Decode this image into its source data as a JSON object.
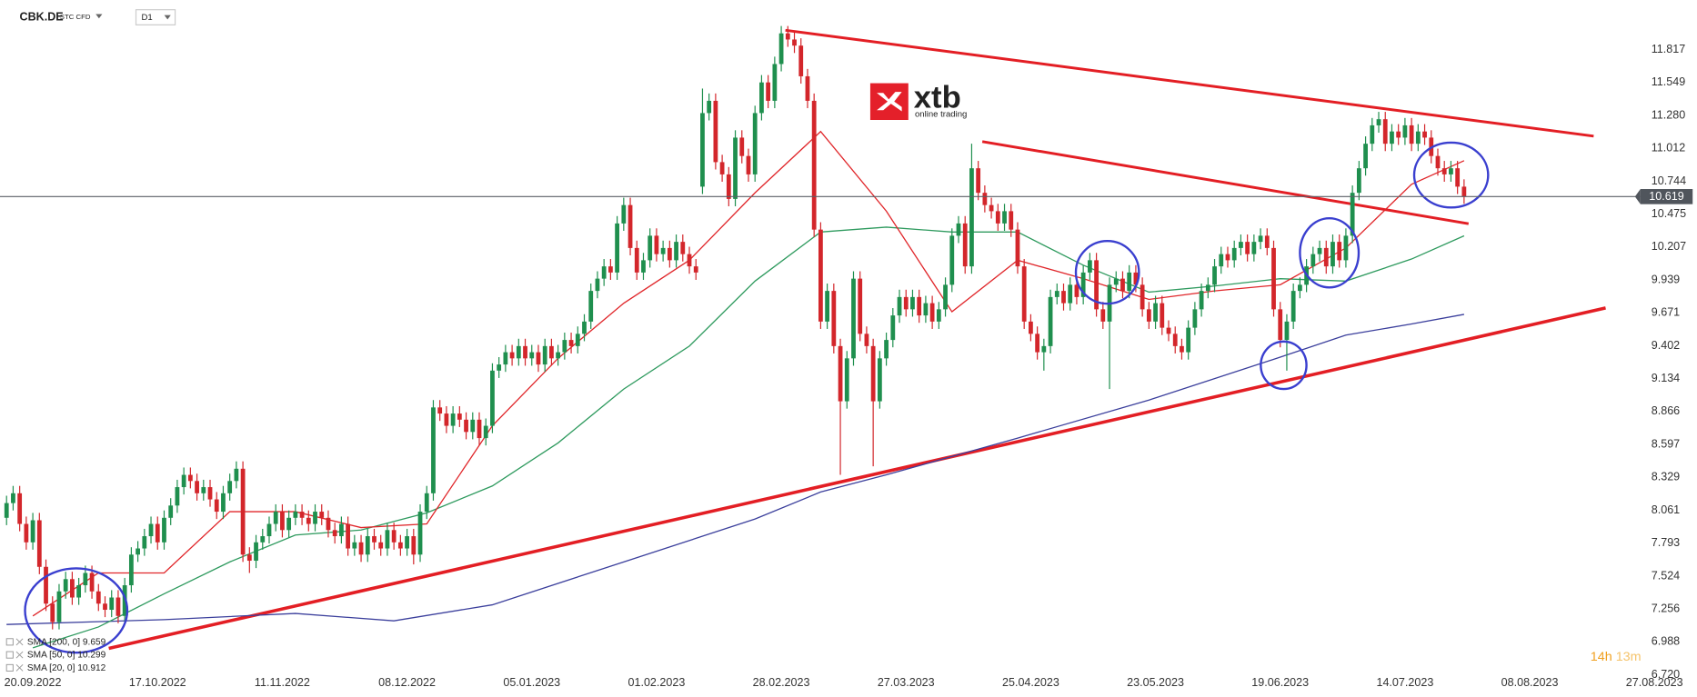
{
  "chart_data": {
    "type": "candlestick",
    "symbol": "CBK.DE",
    "instrument_type": "STC CFD",
    "timeframe": "D1",
    "xlim": [
      -5,
      250
    ],
    "xticks": [
      {
        "value": 0,
        "label": "20.09.2022"
      },
      {
        "value": 19,
        "label": "17.10.2022"
      },
      {
        "value": 38,
        "label": "11.11.2022"
      },
      {
        "value": 57,
        "label": "08.12.2022"
      },
      {
        "value": 76,
        "label": "05.01.2023"
      },
      {
        "value": 95,
        "label": "01.02.2023"
      },
      {
        "value": 114,
        "label": "28.02.2023"
      },
      {
        "value": 133,
        "label": "27.03.2023"
      },
      {
        "value": 152,
        "label": "25.04.2023"
      },
      {
        "value": 171,
        "label": "23.05.2023"
      },
      {
        "value": 190,
        "label": "19.06.2023"
      },
      {
        "value": 209,
        "label": "14.07.2023"
      },
      {
        "value": 228,
        "label": "08.08.2023"
      },
      {
        "value": 247,
        "label": "27.08.2023"
      }
    ],
    "ylim": [
      6.715,
      12.222
    ],
    "yticks": [
      11.817,
      11.549,
      {
        "value": 11.28,
        "label": "11.280"
      },
      11.012,
      10.744,
      10.475,
      10.207,
      9.939,
      9.671,
      9.402,
      9.134,
      8.866,
      8.597,
      8.329,
      8.061,
      7.793,
      7.524,
      7.256,
      6.988,
      {
        "value": 6.72,
        "label": "6.720"
      }
    ],
    "grid": false,
    "up_color": "#1f8f4e",
    "down_color": "#d3262b",
    "last_price": 10.619,
    "candles": {
      "x": [
        -4,
        -3,
        -2,
        -1,
        0,
        1,
        2,
        3,
        4,
        5,
        6,
        7,
        8,
        9,
        10,
        11,
        12,
        13,
        14,
        15,
        16,
        17,
        18,
        19,
        20,
        21,
        22,
        23,
        24,
        25,
        26,
        27,
        28,
        29,
        30,
        31,
        32,
        33,
        34,
        35,
        36,
        37,
        38,
        39,
        40,
        41,
        42,
        43,
        44,
        45,
        46,
        47,
        48,
        49,
        50,
        51,
        52,
        53,
        54,
        55,
        56,
        57,
        58,
        59,
        60,
        61,
        62,
        63,
        64,
        65,
        66,
        67,
        68,
        69,
        70,
        71,
        72,
        73,
        74,
        75,
        76,
        77,
        78,
        79,
        80,
        81,
        82,
        83,
        84,
        85,
        86,
        87,
        88,
        89,
        90,
        91,
        92,
        93,
        94,
        95,
        96,
        97,
        98,
        99,
        100,
        101,
        102,
        103,
        104,
        105,
        106,
        107,
        108,
        109,
        110,
        111,
        112,
        113,
        114,
        115,
        116,
        117,
        118,
        119,
        120,
        121,
        122,
        123,
        124,
        125,
        126,
        127,
        128,
        129,
        130,
        131,
        132,
        133,
        134,
        135,
        136,
        137,
        138,
        139,
        140,
        141,
        142,
        143,
        144,
        145,
        146,
        147,
        148,
        149,
        150,
        151,
        152,
        153,
        154,
        155,
        156,
        157,
        158,
        159,
        160,
        161,
        162,
        163,
        164,
        165,
        166,
        167,
        168,
        169,
        170,
        171,
        172,
        173,
        174,
        175,
        176,
        177,
        178,
        179,
        180,
        181,
        182,
        183,
        184,
        185,
        186,
        187,
        188,
        189,
        190,
        191,
        192,
        193,
        194,
        195,
        196,
        197,
        198,
        199,
        200,
        201,
        202,
        203,
        204,
        205,
        206,
        207,
        208,
        209,
        210,
        211,
        212,
        213,
        214,
        215,
        216,
        217,
        218
      ],
      "open": [
        8.0,
        8.12,
        8.2,
        7.95,
        7.8,
        7.98,
        7.6,
        7.3,
        7.15,
        7.4,
        7.5,
        7.35,
        7.45,
        7.55,
        7.4,
        7.3,
        7.25,
        7.35,
        7.2,
        7.45,
        7.7,
        7.75,
        7.85,
        7.95,
        7.8,
        8.0,
        8.1,
        8.25,
        8.35,
        8.3,
        8.2,
        8.25,
        8.15,
        8.05,
        8.2,
        8.3,
        8.4,
        7.7,
        7.65,
        7.8,
        7.85,
        7.95,
        8.05,
        7.9,
        8.0,
        8.05,
        8.0,
        7.95,
        8.05,
        8.0,
        7.9,
        7.85,
        7.95,
        7.75,
        7.8,
        7.7,
        7.85,
        7.8,
        7.75,
        7.9,
        7.8,
        7.75,
        7.85,
        7.7,
        8.05,
        8.2,
        8.9,
        8.85,
        8.75,
        8.85,
        8.8,
        8.7,
        8.8,
        8.65,
        8.75,
        9.2,
        9.25,
        9.35,
        9.3,
        9.4,
        9.3,
        9.35,
        9.25,
        9.4,
        9.3,
        9.35,
        9.45,
        9.4,
        9.5,
        9.6,
        9.85,
        9.95,
        10.05,
        10.0,
        10.4,
        10.55,
        10.2,
        10.0,
        10.1,
        10.3,
        10.15,
        10.2,
        10.1,
        10.25,
        10.15,
        10.05,
        10.7,
        11.3,
        11.4,
        10.9,
        10.8,
        10.6,
        11.1,
        10.95,
        10.8,
        11.3,
        11.55,
        11.4,
        11.7,
        11.95,
        11.9,
        11.85,
        11.6,
        11.4,
        10.35,
        9.6,
        9.85,
        9.4,
        8.95,
        9.3,
        9.95,
        9.5,
        9.4,
        8.95,
        9.3,
        9.45,
        9.65,
        9.8,
        9.7,
        9.8,
        9.65,
        9.75,
        9.6,
        9.7,
        9.9,
        10.3,
        10.4,
        10.05,
        10.85,
        10.65,
        10.55,
        10.5,
        10.4,
        10.5,
        10.35,
        10.05,
        9.6,
        9.5,
        9.35,
        9.4,
        9.8,
        9.85,
        9.75,
        9.9,
        9.8,
        10.0,
        10.1,
        9.7,
        9.6,
        9.9,
        9.95,
        9.85,
        10.0,
        9.9,
        9.7,
        9.6,
        9.75,
        9.55,
        9.5,
        9.4,
        9.35,
        9.55,
        9.7,
        9.85,
        9.9,
        10.05,
        10.15,
        10.1,
        10.2,
        10.25,
        10.15,
        10.25,
        10.3,
        10.2,
        9.7,
        9.45,
        9.6,
        9.85,
        9.9,
        10.05,
        10.15,
        10.2,
        10.05,
        10.25,
        10.1,
        10.3,
        10.65,
        10.85,
        11.05,
        11.2,
        11.25,
        11.05,
        11.15,
        11.1,
        11.2,
        11.05,
        11.15,
        11.1,
        10.95,
        10.85,
        10.8,
        10.85,
        10.7
      ],
      "high": [
        8.18,
        8.26,
        8.26,
        8.01,
        8.04,
        8.04,
        7.66,
        7.36,
        7.46,
        7.56,
        7.56,
        7.51,
        7.61,
        7.61,
        7.46,
        7.36,
        7.41,
        7.41,
        7.51,
        7.76,
        7.81,
        7.91,
        8.01,
        8.01,
        8.06,
        8.16,
        8.31,
        8.41,
        8.41,
        8.36,
        8.31,
        8.31,
        8.21,
        8.26,
        8.36,
        8.46,
        8.46,
        7.76,
        7.86,
        7.91,
        8.01,
        8.11,
        8.11,
        8.06,
        8.11,
        8.11,
        8.06,
        8.11,
        8.11,
        8.06,
        7.96,
        8.01,
        8.01,
        7.86,
        7.86,
        7.91,
        7.91,
        7.86,
        7.96,
        7.96,
        7.86,
        7.91,
        7.91,
        8.11,
        8.26,
        8.96,
        8.96,
        8.91,
        8.91,
        8.91,
        8.86,
        8.86,
        8.86,
        8.81,
        9.26,
        9.31,
        9.41,
        9.41,
        9.46,
        9.46,
        9.41,
        9.41,
        9.46,
        9.46,
        9.41,
        9.51,
        9.51,
        9.56,
        9.66,
        9.91,
        10.01,
        10.11,
        10.11,
        10.46,
        10.61,
        10.61,
        10.26,
        10.16,
        10.36,
        10.36,
        10.26,
        10.26,
        10.31,
        10.31,
        10.21,
        10.11,
        11.5,
        11.46,
        11.46,
        10.96,
        10.86,
        11.16,
        11.16,
        11.01,
        11.36,
        11.61,
        11.61,
        11.76,
        12.01,
        12.01,
        11.96,
        11.91,
        11.66,
        11.46,
        10.41,
        9.91,
        9.91,
        9.46,
        9.36,
        10.01,
        10.01,
        9.56,
        9.46,
        9.36,
        9.51,
        9.71,
        9.86,
        9.86,
        9.86,
        9.86,
        9.81,
        9.81,
        9.76,
        9.96,
        10.36,
        10.46,
        10.46,
        11.05,
        10.91,
        10.71,
        10.61,
        10.56,
        10.56,
        10.56,
        10.41,
        10.11,
        9.66,
        9.56,
        9.46,
        9.86,
        9.91,
        9.91,
        9.96,
        9.96,
        10.06,
        10.16,
        10.16,
        9.76,
        9.96,
        10.01,
        10.01,
        10.06,
        10.06,
        9.96,
        9.76,
        9.81,
        9.81,
        9.61,
        9.56,
        9.46,
        9.61,
        9.76,
        9.91,
        9.96,
        10.11,
        10.21,
        10.21,
        10.26,
        10.31,
        10.31,
        10.31,
        10.36,
        10.36,
        10.26,
        9.76,
        9.66,
        9.91,
        9.96,
        10.11,
        10.21,
        10.26,
        10.26,
        10.31,
        10.31,
        10.36,
        10.71,
        10.91,
        11.11,
        11.26,
        11.31,
        11.31,
        11.21,
        11.21,
        11.26,
        11.26,
        11.21,
        11.21,
        11.16,
        11.01,
        10.91,
        10.91,
        10.91,
        10.76
      ],
      "low": [
        7.94,
        8.06,
        7.89,
        7.74,
        7.74,
        7.54,
        7.24,
        7.09,
        7.09,
        7.34,
        7.29,
        7.29,
        7.39,
        7.34,
        7.24,
        7.19,
        7.19,
        7.14,
        7.14,
        7.39,
        7.64,
        7.69,
        7.79,
        7.74,
        7.74,
        7.94,
        8.04,
        8.19,
        8.24,
        8.14,
        8.14,
        8.09,
        7.99,
        7.99,
        8.14,
        8.24,
        7.64,
        7.55,
        7.59,
        7.74,
        7.79,
        7.89,
        7.84,
        7.84,
        7.94,
        7.94,
        7.89,
        7.89,
        7.94,
        7.84,
        7.79,
        7.79,
        7.69,
        7.69,
        7.64,
        7.64,
        7.74,
        7.69,
        7.69,
        7.74,
        7.69,
        7.69,
        7.62,
        7.64,
        7.99,
        8.14,
        8.79,
        8.69,
        8.69,
        8.74,
        8.64,
        8.64,
        8.59,
        8.59,
        8.69,
        9.14,
        9.19,
        9.24,
        9.24,
        9.24,
        9.24,
        9.19,
        9.19,
        9.24,
        9.24,
        9.29,
        9.34,
        9.34,
        9.44,
        9.54,
        9.79,
        9.89,
        9.94,
        9.94,
        10.34,
        10.14,
        9.94,
        9.94,
        10.04,
        10.09,
        10.09,
        10.04,
        10.04,
        10.09,
        9.99,
        9.94,
        10.64,
        11.24,
        10.84,
        10.74,
        10.54,
        10.54,
        10.89,
        10.74,
        10.74,
        11.24,
        11.34,
        11.34,
        11.64,
        11.84,
        11.79,
        11.54,
        11.34,
        10.29,
        9.54,
        9.54,
        9.34,
        8.35,
        8.89,
        9.24,
        9.44,
        9.34,
        8.42,
        8.89,
        9.24,
        9.39,
        9.59,
        9.64,
        9.64,
        9.59,
        9.59,
        9.54,
        9.54,
        9.64,
        9.84,
        10.24,
        9.99,
        9.99,
        10.59,
        10.49,
        10.44,
        10.34,
        10.34,
        10.29,
        9.99,
        9.54,
        9.44,
        9.29,
        9.2,
        9.34,
        9.74,
        9.69,
        9.69,
        9.74,
        9.74,
        9.94,
        9.64,
        9.54,
        9.05,
        9.84,
        9.79,
        9.79,
        9.84,
        9.64,
        9.54,
        9.54,
        9.49,
        9.44,
        9.34,
        9.29,
        9.29,
        9.49,
        9.64,
        9.79,
        9.84,
        9.99,
        10.04,
        10.04,
        10.14,
        10.09,
        10.09,
        10.19,
        10.14,
        9.64,
        9.39,
        9.2,
        9.54,
        9.79,
        9.84,
        9.99,
        10.09,
        9.99,
        9.99,
        10.04,
        10.04,
        10.24,
        10.59,
        10.79,
        10.99,
        11.14,
        10.99,
        10.99,
        11.04,
        11.04,
        10.99,
        10.99,
        11.04,
        10.89,
        10.79,
        10.74,
        10.74,
        10.64,
        10.56
      ],
      "close": [
        8.12,
        8.2,
        7.95,
        7.8,
        7.98,
        7.6,
        7.3,
        7.15,
        7.4,
        7.5,
        7.35,
        7.45,
        7.55,
        7.4,
        7.3,
        7.25,
        7.35,
        7.2,
        7.45,
        7.7,
        7.75,
        7.85,
        7.95,
        7.8,
        8.0,
        8.1,
        8.25,
        8.35,
        8.3,
        8.2,
        8.25,
        8.15,
        8.05,
        8.2,
        8.3,
        8.4,
        7.7,
        7.65,
        7.8,
        7.85,
        7.95,
        8.05,
        7.9,
        8.0,
        8.05,
        8.0,
        7.95,
        8.05,
        8.0,
        7.9,
        7.85,
        7.95,
        7.75,
        7.8,
        7.7,
        7.85,
        7.8,
        7.75,
        7.9,
        7.8,
        7.75,
        7.85,
        7.7,
        8.05,
        8.2,
        8.9,
        8.85,
        8.75,
        8.85,
        8.8,
        8.7,
        8.8,
        8.65,
        8.75,
        9.2,
        9.25,
        9.35,
        9.3,
        9.4,
        9.3,
        9.35,
        9.25,
        9.4,
        9.3,
        9.35,
        9.45,
        9.4,
        9.5,
        9.6,
        9.85,
        9.95,
        10.05,
        10.0,
        10.4,
        10.55,
        10.2,
        10.0,
        10.1,
        10.3,
        10.15,
        10.2,
        10.1,
        10.25,
        10.15,
        10.05,
        10.0,
        11.3,
        11.4,
        10.9,
        10.8,
        10.6,
        11.1,
        10.95,
        10.8,
        11.3,
        11.55,
        11.4,
        11.7,
        11.95,
        11.9,
        11.85,
        11.6,
        11.4,
        10.35,
        9.6,
        9.85,
        9.4,
        8.95,
        9.3,
        9.95,
        9.5,
        9.4,
        8.95,
        9.3,
        9.45,
        9.65,
        9.8,
        9.7,
        9.8,
        9.65,
        9.75,
        9.6,
        9.7,
        9.9,
        10.3,
        10.4,
        10.05,
        10.85,
        10.65,
        10.55,
        10.5,
        10.4,
        10.5,
        10.35,
        10.05,
        9.6,
        9.5,
        9.35,
        9.4,
        9.8,
        9.85,
        9.75,
        9.9,
        9.8,
        10.0,
        10.1,
        9.7,
        9.6,
        9.9,
        9.95,
        9.85,
        10.0,
        9.9,
        9.7,
        9.6,
        9.75,
        9.55,
        9.5,
        9.4,
        9.35,
        9.55,
        9.7,
        9.85,
        9.9,
        10.05,
        10.15,
        10.1,
        10.2,
        10.25,
        10.15,
        10.25,
        10.3,
        10.2,
        9.7,
        9.45,
        9.6,
        9.85,
        9.9,
        10.05,
        10.15,
        10.2,
        10.05,
        10.25,
        10.1,
        10.3,
        10.65,
        10.85,
        11.05,
        11.2,
        11.25,
        11.05,
        11.15,
        11.1,
        11.2,
        11.05,
        11.15,
        11.1,
        10.95,
        10.85,
        10.8,
        10.85,
        10.7,
        10.62
      ]
    },
    "series": [
      {
        "name": "SMA [200, 0]",
        "color": "#3b3f9c",
        "x": [
          -4,
          20,
          40,
          55,
          70,
          90,
          110,
          120,
          130,
          150,
          170,
          190,
          200,
          210,
          218
        ],
        "values": [
          7.13,
          7.17,
          7.22,
          7.16,
          7.29,
          7.64,
          7.99,
          8.21,
          8.35,
          8.65,
          8.96,
          9.31,
          9.49,
          9.58,
          9.659
        ]
      },
      {
        "name": "SMA [50, 0]",
        "color": "#2e9a5e",
        "x": [
          0,
          10,
          20,
          30,
          40,
          50,
          60,
          70,
          80,
          90,
          100,
          110,
          120,
          130,
          140,
          150,
          160,
          170,
          180,
          190,
          200,
          210,
          218
        ],
        "values": [
          6.94,
          7.11,
          7.38,
          7.64,
          7.86,
          7.9,
          8.04,
          8.26,
          8.61,
          9.05,
          9.4,
          9.93,
          10.33,
          10.37,
          10.33,
          10.33,
          10.06,
          9.84,
          9.89,
          9.95,
          9.93,
          10.11,
          10.299
        ]
      },
      {
        "name": "SMA [20, 0]",
        "color": "#e0262a",
        "x": [
          0,
          10,
          20,
          30,
          40,
          50,
          60,
          70,
          80,
          90,
          100,
          110,
          120,
          130,
          140,
          150,
          160,
          170,
          180,
          190,
          200,
          210,
          218
        ],
        "values": [
          7.2,
          7.55,
          7.55,
          8.05,
          8.05,
          7.92,
          7.95,
          8.75,
          9.3,
          9.75,
          10.1,
          10.65,
          11.15,
          10.5,
          9.68,
          10.1,
          9.95,
          9.78,
          9.85,
          9.9,
          10.2,
          10.72,
          10.912
        ]
      }
    ]
  },
  "logo": {
    "name": "xtb",
    "tagline": "online trading"
  },
  "countdown": {
    "hours": "14h",
    "minutes": "13m"
  }
}
